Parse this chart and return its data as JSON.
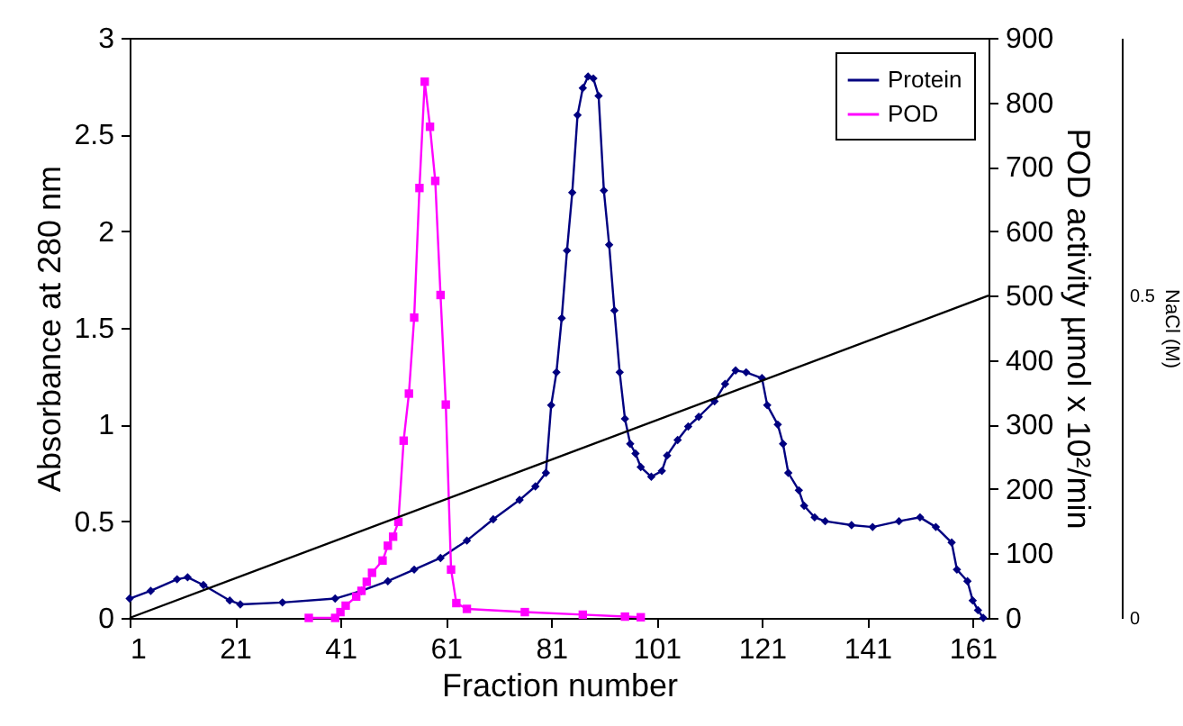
{
  "chart_data": {
    "type": "line",
    "xlabel": "Fraction number",
    "ylabel": "Absorbance at 280 nm",
    "y2label": "POD activity µmol x 10²/min",
    "y3label": "NaCl (M)",
    "xlim": [
      1,
      164
    ],
    "xticks": [
      1,
      21,
      41,
      61,
      81,
      101,
      121,
      141,
      161
    ],
    "ylim": [
      0,
      3
    ],
    "yticks": [
      0,
      0.5,
      1,
      1.5,
      2,
      2.5,
      3
    ],
    "y2lim": [
      0,
      900
    ],
    "y2ticks": [
      0,
      100,
      200,
      300,
      400,
      500,
      600,
      700,
      800,
      900
    ],
    "y3lim": [
      0,
      0.9
    ],
    "y3ticks": [
      0,
      0.5
    ],
    "legend": "top right",
    "grid": false,
    "series": [
      {
        "name": "Protein",
        "color": "#000080",
        "marker": "diamond",
        "x": [
          1,
          5,
          10,
          12,
          15,
          20,
          22,
          30,
          40,
          45,
          50,
          55,
          60,
          65,
          70,
          75,
          78,
          80,
          81,
          82,
          83,
          84,
          85,
          86,
          87,
          88,
          89,
          90,
          91,
          92,
          93,
          94,
          95,
          96,
          97,
          98,
          100,
          102,
          103,
          105,
          107,
          109,
          112,
          114,
          116,
          118,
          121,
          122,
          124,
          125,
          126,
          128,
          129,
          131,
          133,
          138,
          142,
          147,
          151,
          154,
          157,
          158,
          160,
          161,
          162,
          163
        ],
        "values": [
          0.1,
          0.14,
          0.2,
          0.21,
          0.17,
          0.09,
          0.07,
          0.08,
          0.1,
          0.14,
          0.19,
          0.25,
          0.31,
          0.4,
          0.51,
          0.61,
          0.68,
          0.75,
          1.1,
          1.27,
          1.55,
          1.9,
          2.2,
          2.6,
          2.74,
          2.8,
          2.79,
          2.7,
          2.21,
          1.93,
          1.59,
          1.27,
          1.03,
          0.9,
          0.85,
          0.78,
          0.73,
          0.76,
          0.84,
          0.92,
          0.99,
          1.04,
          1.12,
          1.21,
          1.28,
          1.27,
          1.24,
          1.1,
          1.0,
          0.9,
          0.75,
          0.66,
          0.58,
          0.52,
          0.5,
          0.48,
          0.47,
          0.5,
          0.52,
          0.47,
          0.39,
          0.25,
          0.19,
          0.09,
          0.04,
          0
        ]
      },
      {
        "name": "POD",
        "color": "#ff00ff",
        "marker": "square",
        "axis": "y2",
        "x": [
          35,
          40,
          41,
          42,
          44,
          45,
          46,
          47,
          49,
          50,
          51,
          52,
          53,
          54,
          55,
          56,
          57,
          58,
          59,
          60,
          61,
          62,
          63,
          65,
          76,
          87,
          95,
          98
        ],
        "values": [
          0,
          0,
          9,
          19,
          33,
          42,
          56,
          70,
          89,
          112,
          126,
          149,
          275,
          348,
          466,
          667,
          832,
          762,
          678,
          501,
          331,
          75,
          23,
          14,
          9,
          5,
          2,
          1
        ]
      },
      {
        "color": "#000000",
        "marker": "none",
        "axis": "y3",
        "x": [
          1,
          164
        ],
        "values": [
          0,
          0.5
        ]
      }
    ]
  }
}
